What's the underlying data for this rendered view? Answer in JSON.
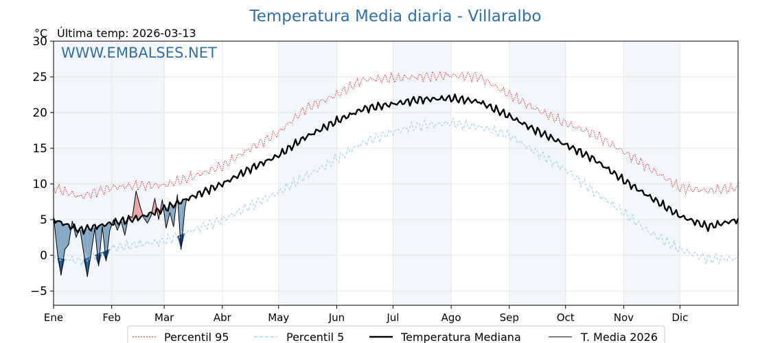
{
  "title": "Temperatura Media diaria - Villaralbo",
  "unit": "°C",
  "last_temp": "Última temp: 2026-03-13",
  "watermark": "WWW.EMBALSES.NET",
  "colors": {
    "title": "#3070a8",
    "p95": "#ff0000",
    "p5": "#a9d4e4",
    "median": "#000000",
    "current": "#000000",
    "above_fill": "#e8a8a8",
    "below_fill": "#86a9c6",
    "below_p5_fill": "#1f5a90",
    "band": "#f3f7fb"
  },
  "chart_data": {
    "type": "line",
    "title": "Temperatura Media diaria - Villaralbo",
    "ylabel": "°C",
    "xlim": [
      1,
      366
    ],
    "ylim": [
      -7,
      30
    ],
    "y_ticks": [
      -5,
      0,
      5,
      10,
      15,
      20,
      25,
      30
    ],
    "y_tick_labels": [
      "−5",
      "0",
      "5",
      "10",
      "15",
      "20",
      "25",
      "30"
    ],
    "x_tick_days": [
      1,
      32,
      60,
      91,
      121,
      152,
      182,
      213,
      244,
      274,
      305,
      335
    ],
    "x_tick_labels": [
      "Ene",
      "Feb",
      "Mar",
      "Abr",
      "May",
      "Jun",
      "Jul",
      "Ago",
      "Sep",
      "Oct",
      "Nov",
      "Dic"
    ],
    "grid": true,
    "legend_position": "bottom",
    "legend": [
      "Percentil 95",
      "Percentil 5",
      "Temperatura Mediana",
      "T. Media 2026"
    ],
    "series": [
      {
        "name": "Percentil 95",
        "style": "dotted",
        "x": [
          1,
          15,
          32,
          46,
          60,
          75,
          91,
          105,
          121,
          135,
          152,
          166,
          182,
          196,
          213,
          228,
          244,
          258,
          274,
          289,
          305,
          320,
          335,
          350,
          366
        ],
        "values": [
          9.5,
          8.2,
          9.5,
          9.8,
          9.8,
          11.0,
          12.5,
          14.8,
          17.2,
          20.5,
          22.5,
          24.6,
          24.8,
          25.0,
          25.2,
          25.0,
          22.5,
          20.5,
          18.5,
          17.0,
          14.5,
          12.0,
          9.5,
          9.0,
          9.5
        ]
      },
      {
        "name": "Percentil 5",
        "style": "dashed",
        "x": [
          1,
          15,
          32,
          46,
          60,
          75,
          91,
          105,
          121,
          135,
          152,
          166,
          182,
          196,
          213,
          228,
          244,
          258,
          274,
          289,
          305,
          320,
          335,
          350,
          366
        ],
        "values": [
          -0.3,
          -0.8,
          1.0,
          1.5,
          2.0,
          3.5,
          5.0,
          6.8,
          8.8,
          11.0,
          13.5,
          15.8,
          17.3,
          18.2,
          18.5,
          18.0,
          16.8,
          14.5,
          12.0,
          9.0,
          6.0,
          3.0,
          0.8,
          -0.5,
          -0.5
        ]
      },
      {
        "name": "Temperatura Mediana",
        "style": "solid-bold",
        "x": [
          1,
          15,
          32,
          46,
          60,
          75,
          91,
          105,
          121,
          135,
          152,
          166,
          182,
          196,
          213,
          228,
          244,
          258,
          274,
          289,
          305,
          320,
          335,
          350,
          366
        ],
        "values": [
          5.0,
          3.5,
          4.5,
          5.2,
          6.5,
          8.2,
          10.0,
          12.0,
          14.0,
          16.5,
          18.8,
          20.5,
          21.2,
          21.8,
          22.0,
          21.5,
          19.5,
          17.5,
          15.5,
          13.5,
          10.5,
          8.0,
          5.5,
          4.0,
          5.0
        ]
      },
      {
        "name": "T. Media 2026",
        "style": "solid-thin",
        "x": [
          1,
          3,
          5,
          7,
          9,
          11,
          13,
          15,
          17,
          19,
          21,
          23,
          25,
          27,
          29,
          31,
          33,
          35,
          37,
          39,
          41,
          43,
          45,
          47,
          49,
          51,
          53,
          55,
          57,
          59,
          61,
          63,
          65,
          67,
          69,
          71,
          72
        ],
        "values": [
          5.5,
          0.5,
          -2.8,
          0.8,
          1.5,
          4.8,
          2.5,
          3.8,
          0.5,
          -3.0,
          0.2,
          3.8,
          -1.5,
          4.0,
          -0.8,
          3.5,
          5.0,
          3.5,
          4.8,
          2.8,
          5.5,
          5.3,
          9.0,
          7.0,
          5.3,
          4.5,
          5.5,
          8.0,
          5.0,
          7.8,
          3.8,
          6.0,
          4.0,
          8.5,
          0.8,
          6.5,
          8.0
        ]
      }
    ]
  }
}
